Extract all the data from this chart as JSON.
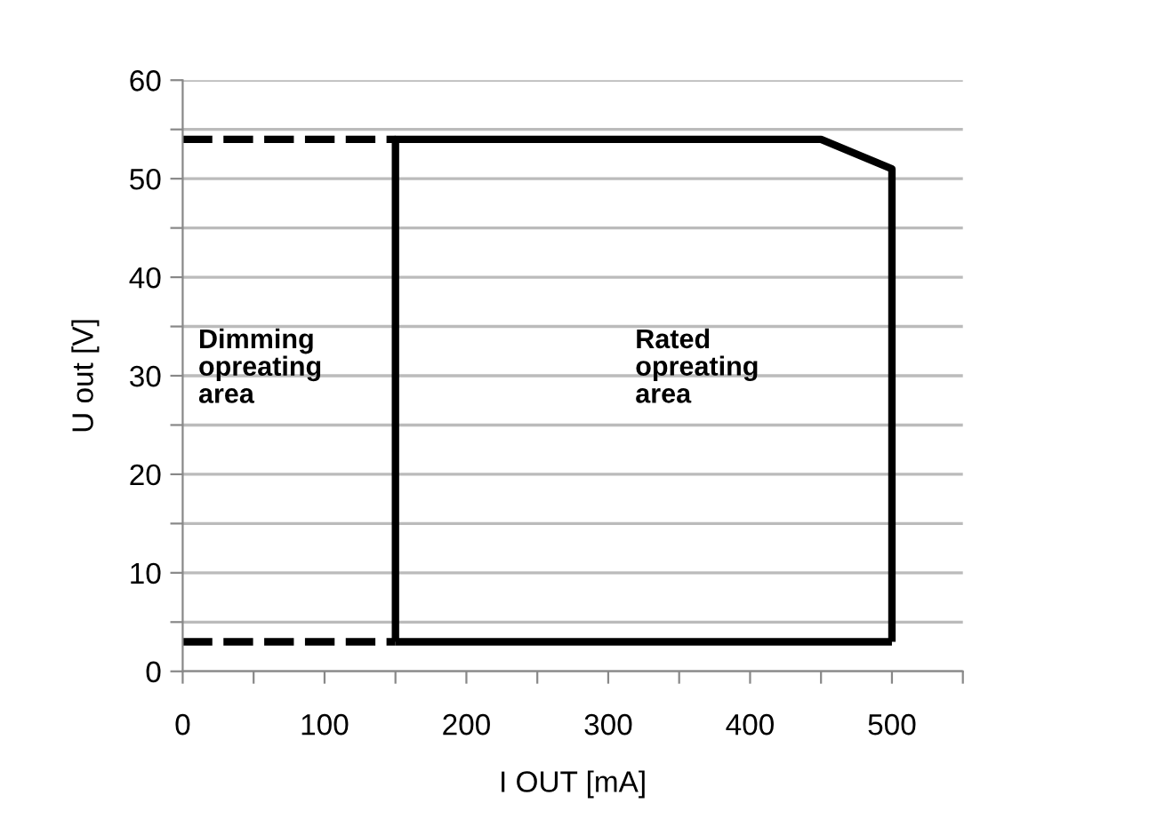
{
  "chart_data": {
    "type": "line",
    "xlabel": "I OUT [mA]",
    "ylabel": "U out [V]",
    "series": [
      {
        "color": "#000000",
        "line_style": "dashed",
        "x": [
          0,
          150
        ],
        "values": [
          54,
          54
        ]
      },
      {
        "color": "#000000",
        "line_style": "dashed",
        "x": [
          0,
          150
        ],
        "values": [
          3,
          3
        ]
      },
      {
        "color": "#000000",
        "line_style": "solid",
        "x": [
          150,
          150,
          450,
          500,
          500
        ],
        "values": [
          3,
          54,
          54,
          51,
          3
        ]
      },
      {
        "color": "#000000",
        "line_style": "solid",
        "x": [
          150,
          500
        ],
        "values": [
          3,
          3
        ]
      }
    ],
    "xlim": [
      0,
      550
    ],
    "ylim": [
      0,
      60
    ],
    "xticks": [
      0,
      {
        "value": 50,
        "label": null
      },
      100,
      {
        "value": 150,
        "label": null
      },
      200,
      {
        "value": 250,
        "label": null
      },
      300,
      {
        "value": 350,
        "label": null
      },
      400,
      {
        "value": 450,
        "label": null
      },
      500,
      {
        "value": 550,
        "label": null
      }
    ],
    "yticks": [
      0,
      {
        "value": 5,
        "label": null
      },
      10,
      {
        "value": 15,
        "label": null
      },
      20,
      {
        "value": 25,
        "label": null
      },
      30,
      {
        "value": 35,
        "label": null
      },
      40,
      {
        "value": 45,
        "label": null
      },
      50,
      {
        "value": 55,
        "label": null
      },
      60
    ],
    "grid": "y",
    "marker": "none",
    "annotations": [
      "Dimming\nopreating\narea",
      "Rated\nopreating\narea"
    ]
  }
}
